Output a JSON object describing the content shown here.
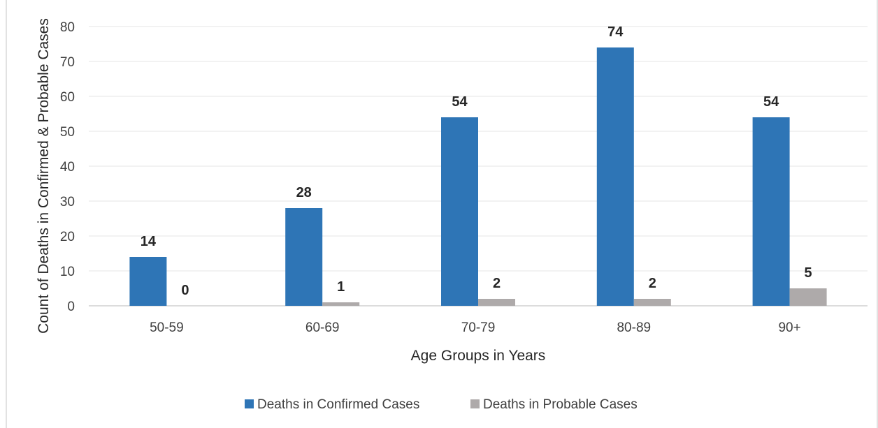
{
  "chart_data": {
    "type": "bar",
    "title": "",
    "xlabel": "Age Groups in Years",
    "ylabel": "Count of Deaths in Confirmed & Probable Cases",
    "ylim": [
      0,
      80
    ],
    "yticks": [
      0,
      10,
      20,
      30,
      40,
      50,
      60,
      70,
      80
    ],
    "grid": true,
    "legend_position": "bottom",
    "categories": [
      "50-59",
      "60-69",
      "70-79",
      "80-89",
      "90+"
    ],
    "series": [
      {
        "name": "Deaths in Confirmed Cases",
        "color": "#2e75b6",
        "values": [
          14,
          28,
          54,
          74,
          54
        ]
      },
      {
        "name": "Deaths in Probable Cases",
        "color": "#aeaaaa",
        "values": [
          0,
          1,
          2,
          2,
          5
        ]
      }
    ]
  }
}
